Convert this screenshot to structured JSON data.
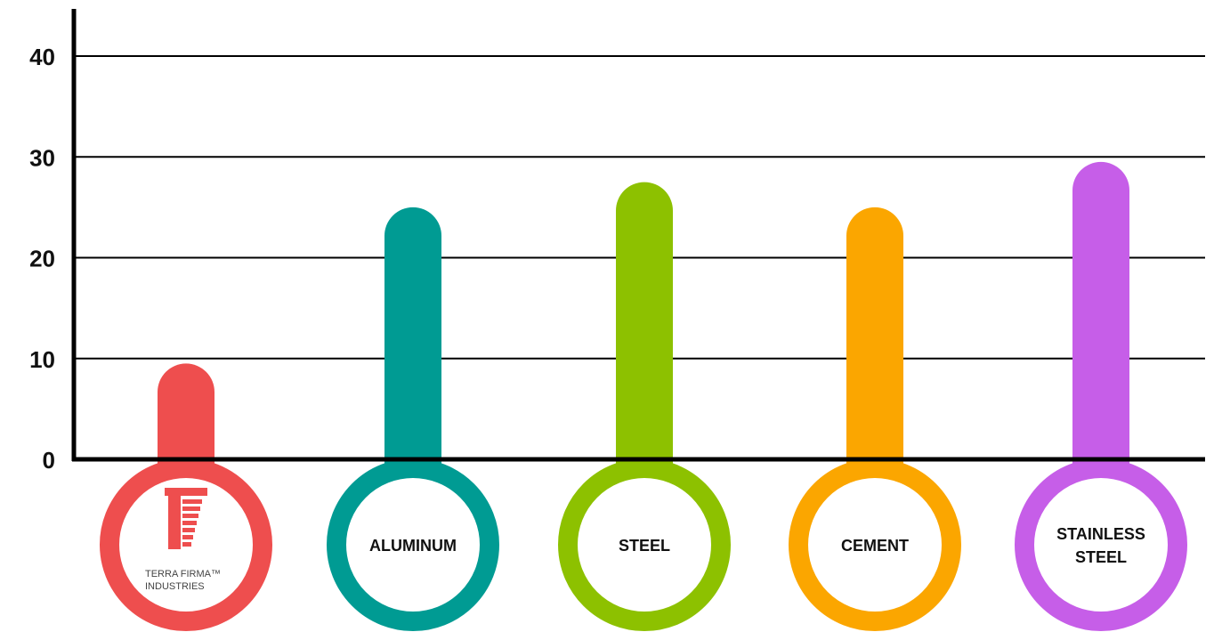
{
  "chart_data": {
    "type": "bar",
    "title": "",
    "xlabel": "",
    "ylabel": "",
    "ylim": [
      0,
      40
    ],
    "yticks": [
      0,
      10,
      20,
      30,
      40
    ],
    "grid": true,
    "categories": [
      {
        "lines": [
          "TERRA FIRMA™",
          "INDUSTRIES"
        ],
        "is_logo": true
      },
      {
        "lines": [
          "ALUMINUM"
        ],
        "is_logo": false
      },
      {
        "lines": [
          "STEEL"
        ],
        "is_logo": false
      },
      {
        "lines": [
          "CEMENT"
        ],
        "is_logo": false
      },
      {
        "lines": [
          "STAINLESS",
          "STEEL"
        ],
        "is_logo": false
      }
    ],
    "values": [
      9.5,
      25,
      27.5,
      25,
      29.5
    ],
    "colors": [
      "#ee4e4e",
      "#009b93",
      "#8dc100",
      "#fba600",
      "#c65ee8"
    ],
    "logo_icon": "terra-firma-logo-icon",
    "axis_color": "#000000"
  }
}
